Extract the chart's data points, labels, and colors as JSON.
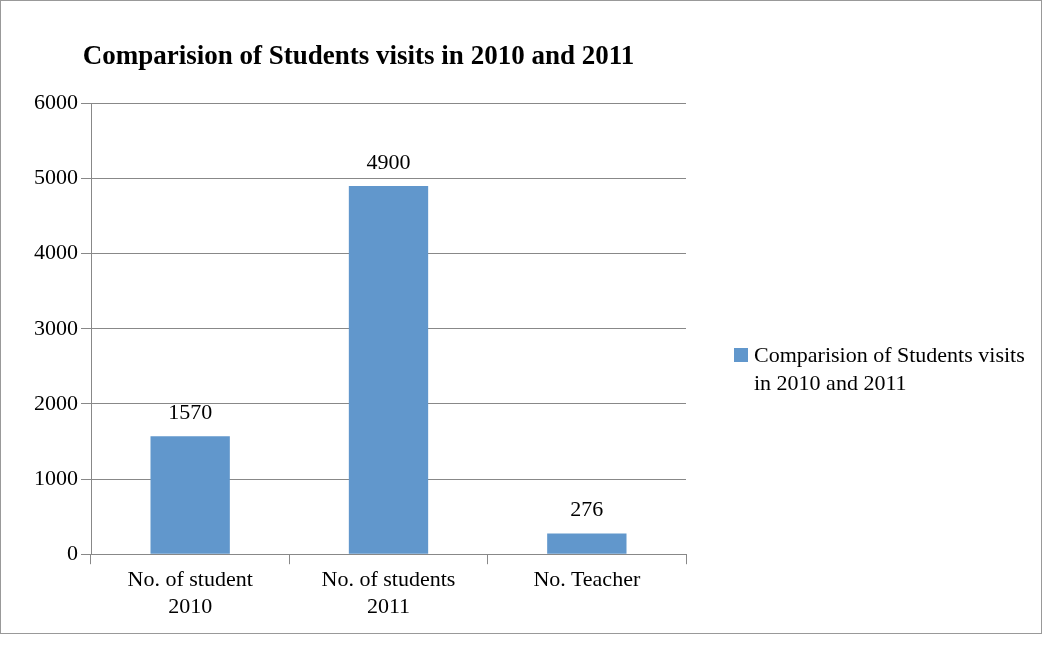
{
  "chart_data": {
    "type": "bar",
    "title": "Comparision of Students visits in 2010 and 2011",
    "categories": [
      "No. of student 2010",
      "No. of students 2011",
      "No. Teacher"
    ],
    "series": [
      {
        "name": "Comparision of Students visits in 2010 and 2011",
        "color": "#6197cc",
        "values": [
          1570,
          4900,
          276
        ]
      }
    ],
    "ylim": [
      0,
      6000
    ],
    "yticks": [
      0,
      1000,
      2000,
      3000,
      4000,
      5000,
      6000
    ],
    "grid": "y",
    "legend": "right",
    "data_labels": true
  }
}
